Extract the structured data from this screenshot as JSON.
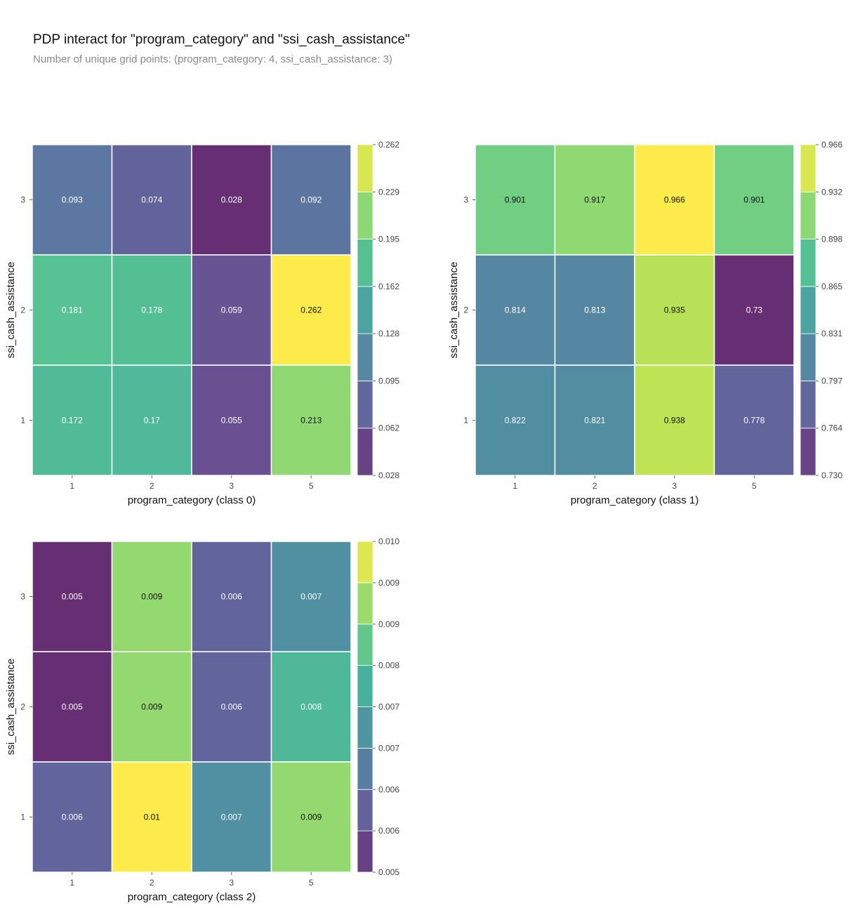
{
  "figure": {
    "title": "PDP interact for \"program_category\" and \"ssi_cash_assistance\"",
    "subtitle": "Number of unique grid points: (program_category: 4, ssi_cash_assistance: 3)"
  },
  "chart_data": [
    {
      "type": "heatmap",
      "xlabel": "program_category (class 0)",
      "ylabel": "ssi_cash_assistance",
      "x_categories": [
        "1",
        "2",
        "3",
        "5"
      ],
      "y_categories": [
        "3",
        "2",
        "1"
      ],
      "values": [
        [
          0.093,
          0.074,
          0.028,
          0.092
        ],
        [
          0.181,
          0.178,
          0.059,
          0.262
        ],
        [
          0.172,
          0.17,
          0.055,
          0.213
        ]
      ],
      "colorbar": {
        "min": 0.028,
        "max": 0.262,
        "tick_labels": [
          "0.028",
          "0.062",
          "0.095",
          "0.128",
          "0.162",
          "0.195",
          "0.229",
          "0.262"
        ]
      }
    },
    {
      "type": "heatmap",
      "xlabel": "program_category (class 1)",
      "ylabel": "ssi_cash_assistance",
      "x_categories": [
        "1",
        "2",
        "3",
        "5"
      ],
      "y_categories": [
        "3",
        "2",
        "1"
      ],
      "values": [
        [
          0.901,
          0.917,
          0.966,
          0.901
        ],
        [
          0.814,
          0.813,
          0.935,
          0.73
        ],
        [
          0.822,
          0.821,
          0.938,
          0.778
        ]
      ],
      "colorbar": {
        "min": 0.73,
        "max": 0.966,
        "tick_labels": [
          "0.730",
          "0.764",
          "0.797",
          "0.831",
          "0.865",
          "0.898",
          "0.932",
          "0.966"
        ]
      }
    },
    {
      "type": "heatmap",
      "xlabel": "program_category (class 2)",
      "ylabel": "ssi_cash_assistance",
      "x_categories": [
        "1",
        "2",
        "3",
        "5"
      ],
      "y_categories": [
        "3",
        "2",
        "1"
      ],
      "values": [
        [
          0.005,
          0.009,
          0.006,
          0.007
        ],
        [
          0.005,
          0.009,
          0.006,
          0.008
        ],
        [
          0.006,
          0.01,
          0.007,
          0.009
        ]
      ],
      "colorbar": {
        "min": 0.005,
        "max": 0.01,
        "tick_labels": [
          "0.005",
          "0.006",
          "0.006",
          "0.007",
          "0.007",
          "0.008",
          "0.009",
          "0.009",
          "0.010"
        ]
      }
    }
  ],
  "colormap": [
    "#440154",
    "#482878",
    "#3e4989",
    "#31688e",
    "#26828e",
    "#1f9e89",
    "#35b779",
    "#6ece58",
    "#b5de2b",
    "#fde725"
  ]
}
